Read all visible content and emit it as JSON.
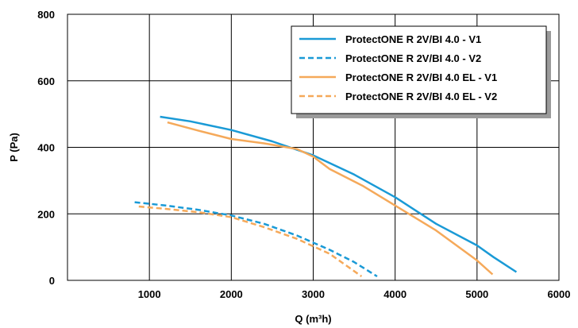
{
  "chart_data": {
    "type": "line",
    "title": "",
    "xlabel": "Q (m³h)",
    "ylabel": "P (Pa)",
    "xlim": [
      0,
      6000
    ],
    "ylim": [
      0,
      800
    ],
    "xticks": [
      1000,
      2000,
      3000,
      4000,
      5000,
      6000
    ],
    "yticks": [
      0,
      200,
      400,
      600,
      800
    ],
    "xtick_labels": [
      "1000",
      "2000",
      "3000",
      "4000",
      "5000",
      "6000"
    ],
    "ytick_labels": [
      "0",
      "200",
      "400",
      "600",
      "800"
    ],
    "grid": true,
    "legend_position": "top-right",
    "series": [
      {
        "name": "ProtectONE R 2V/BI 4.0 - V1",
        "color": "#1a9ad6",
        "dashed": false,
        "x": [
          1130,
          1500,
          2000,
          2500,
          3000,
          3500,
          4000,
          4500,
          5000,
          5200,
          5480
        ],
        "y": [
          492,
          478,
          452,
          418,
          376,
          318,
          250,
          170,
          105,
          70,
          25
        ]
      },
      {
        "name": "ProtectONE R 2V/BI 4.0 - V2",
        "color": "#1a9ad6",
        "dashed": true,
        "x": [
          820,
          1200,
          1600,
          2000,
          2400,
          2800,
          3200,
          3500,
          3780
        ],
        "y": [
          235,
          225,
          212,
          195,
          170,
          135,
          92,
          55,
          12
        ]
      },
      {
        "name": "ProtectONE R 2V/BI 4.0 EL - V1",
        "color": "#f5a95a",
        "dashed": false,
        "x": [
          1220,
          1600,
          2000,
          2400,
          2800,
          3000,
          3200,
          3600,
          4000,
          4500,
          5000,
          5190
        ],
        "y": [
          475,
          450,
          425,
          412,
          395,
          372,
          335,
          285,
          225,
          150,
          60,
          18
        ]
      },
      {
        "name": "ProtectONE R 2V/BI 4.0 EL - V2",
        "color": "#f5a95a",
        "dashed": true,
        "x": [
          870,
          1200,
          1600,
          2000,
          2400,
          2800,
          3200,
          3590
        ],
        "y": [
          222,
          215,
          205,
          190,
          160,
          125,
          80,
          12
        ]
      }
    ]
  }
}
